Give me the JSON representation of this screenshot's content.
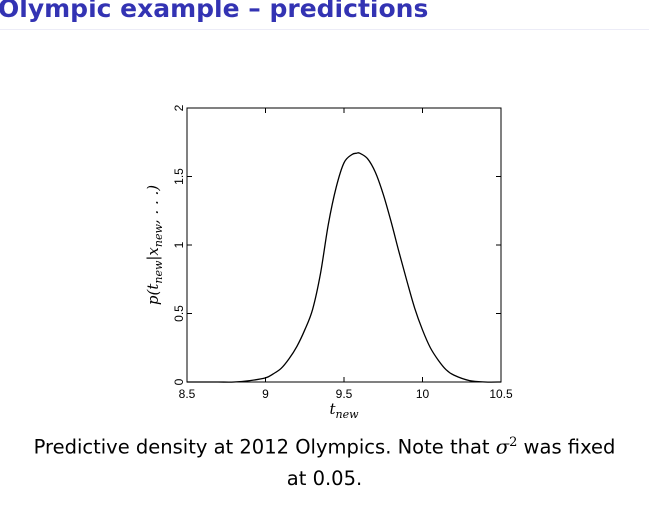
{
  "slide": {
    "title": "Olympic example – predictions"
  },
  "caption": {
    "text_before": "Predictive density at 2012 Olympics. Note that ",
    "symbol": "σ",
    "exponent": "2",
    "text_after": " was fixed",
    "line2": "at 0.05."
  },
  "chart_data": {
    "type": "line",
    "xlabel": "t_new",
    "ylabel": "p(t_new | x_new, ...)",
    "xlim": [
      8.5,
      10.5
    ],
    "ylim": [
      0,
      2
    ],
    "x_ticks": [
      "8.5",
      "9",
      "9.5",
      "10",
      "10.5"
    ],
    "y_ticks": [
      "0",
      "0.5",
      "1",
      "1.5",
      "2"
    ],
    "grid": false,
    "series": [
      {
        "x": [
          8.5,
          8.6,
          8.7,
          8.8,
          8.9,
          9.0,
          9.05,
          9.1,
          9.15,
          9.2,
          9.25,
          9.3,
          9.35,
          9.4,
          9.45,
          9.5,
          9.55,
          9.58,
          9.6,
          9.65,
          9.7,
          9.75,
          9.8,
          9.85,
          9.9,
          9.95,
          10.0,
          10.05,
          10.1,
          10.15,
          10.2,
          10.3,
          10.4,
          10.5
        ],
        "y": [
          0.0,
          0.0,
          0.0,
          0.0,
          0.01,
          0.03,
          0.06,
          0.1,
          0.17,
          0.26,
          0.38,
          0.53,
          0.79,
          1.15,
          1.42,
          1.6,
          1.66,
          1.67,
          1.67,
          1.63,
          1.53,
          1.37,
          1.17,
          0.95,
          0.74,
          0.54,
          0.38,
          0.25,
          0.16,
          0.09,
          0.05,
          0.01,
          0.0,
          0.0
        ],
        "color": "#000000"
      }
    ]
  }
}
